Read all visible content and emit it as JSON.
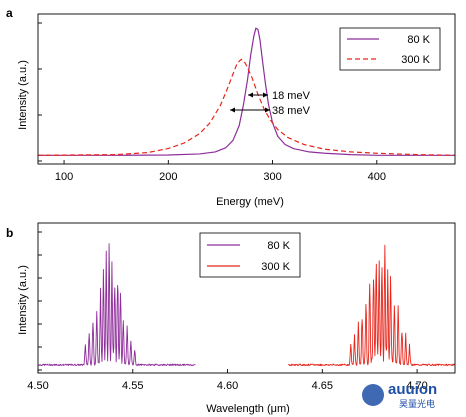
{
  "chart_data": [
    {
      "panel_label": "a",
      "type": "line",
      "xlabel": "Energy (meV)",
      "ylabel": "Intensity (a.u.)",
      "xlim": [
        75,
        475
      ],
      "ylim": [
        0,
        1.05
      ],
      "xticks": [
        100,
        200,
        300,
        400
      ],
      "xtick_labels": [
        "100",
        "200",
        "300",
        "400"
      ],
      "y_tick_count": 4,
      "legend": {
        "position": "top-right",
        "entries": [
          "80 K",
          "300 K"
        ]
      },
      "annotations": [
        "18 meV",
        "38 meV"
      ],
      "series": [
        {
          "name": "80 K",
          "color": "#8e2d9a",
          "style": "solid",
          "x": [
            75,
            150,
            200,
            230,
            245,
            255,
            262,
            268,
            272,
            276,
            279,
            282,
            284,
            286,
            288,
            290,
            293,
            296,
            300,
            305,
            312,
            320,
            335,
            350,
            375,
            400,
            440,
            475
          ],
          "y": [
            0.02,
            0.02,
            0.022,
            0.03,
            0.045,
            0.075,
            0.13,
            0.24,
            0.39,
            0.58,
            0.76,
            0.9,
            0.96,
            0.95,
            0.87,
            0.74,
            0.56,
            0.4,
            0.26,
            0.16,
            0.1,
            0.07,
            0.045,
            0.035,
            0.025,
            0.02,
            0.02,
            0.02
          ]
        },
        {
          "name": "300 K",
          "color": "#e8261c",
          "style": "dashed",
          "x": [
            75,
            150,
            180,
            200,
            215,
            230,
            240,
            250,
            256,
            262,
            266,
            270,
            274,
            280,
            286,
            292,
            298,
            305,
            315,
            330,
            350,
            375,
            400,
            440,
            475
          ],
          "y": [
            0.02,
            0.025,
            0.04,
            0.07,
            0.11,
            0.18,
            0.26,
            0.39,
            0.5,
            0.62,
            0.7,
            0.73,
            0.7,
            0.6,
            0.47,
            0.36,
            0.28,
            0.21,
            0.15,
            0.1,
            0.065,
            0.045,
            0.035,
            0.025,
            0.02
          ]
        }
      ]
    },
    {
      "panel_label": "b",
      "type": "line",
      "xlabel": "Wavelength (μm)",
      "ylabel": "Intensity (a.u.)",
      "xlim": [
        4.5,
        4.72
      ],
      "ylim": [
        0,
        1.05
      ],
      "xticks": [
        4.5,
        4.55,
        4.6,
        4.65,
        4.7
      ],
      "xtick_labels": [
        "4.50",
        "4.55",
        "4.60",
        "4.65",
        "4.70"
      ],
      "y_tick_count": 7,
      "legend": {
        "position": "top-center",
        "entries": [
          "80 K",
          "300 K"
        ]
      },
      "series": [
        {
          "name": "80 K",
          "color": "#8e2d9a",
          "x_range": [
            4.5,
            4.583
          ],
          "center": 4.538,
          "width": 0.0045,
          "peak_lines": [
            [
              4.525,
              0.18
            ],
            [
              4.527,
              0.28
            ],
            [
              4.529,
              0.38
            ],
            [
              4.531,
              0.5
            ],
            [
              4.533,
              0.62
            ],
            [
              4.5345,
              0.76
            ],
            [
              4.536,
              0.9
            ],
            [
              4.5375,
              0.98
            ],
            [
              4.539,
              0.88
            ],
            [
              4.5405,
              0.72
            ],
            [
              4.542,
              0.83
            ],
            [
              4.5435,
              0.6
            ],
            [
              4.545,
              0.45
            ],
            [
              4.547,
              0.32
            ],
            [
              4.549,
              0.22
            ],
            [
              4.551,
              0.14
            ]
          ]
        },
        {
          "name": "300 K",
          "color": "#e8261c",
          "x_range": [
            4.632,
            4.72
          ],
          "center": 4.682,
          "width": 0.0055,
          "peak_lines": [
            [
              4.665,
              0.16
            ],
            [
              4.667,
              0.24
            ],
            [
              4.669,
              0.34
            ],
            [
              4.671,
              0.44
            ],
            [
              4.673,
              0.56
            ],
            [
              4.675,
              0.68
            ],
            [
              4.677,
              0.82
            ],
            [
              4.6785,
              0.94
            ],
            [
              4.68,
              0.99
            ],
            [
              4.6815,
              0.96
            ],
            [
              4.683,
              0.9
            ],
            [
              4.6845,
              0.78
            ],
            [
              4.686,
              0.82
            ],
            [
              4.688,
              0.62
            ],
            [
              4.69,
              0.46
            ],
            [
              4.692,
              0.34
            ],
            [
              4.694,
              0.24
            ],
            [
              4.696,
              0.16
            ]
          ]
        }
      ]
    }
  ],
  "watermark": {
    "brand": "auuion",
    "subtitle": "昊量光电",
    "color": "#1e4fa6"
  }
}
